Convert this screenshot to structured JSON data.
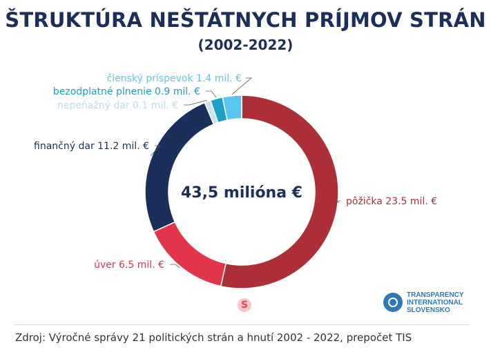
{
  "header": {
    "title": "ŠTRUKTÚRA NEŠTÁTNYCH PRÍJMOV STRÁN",
    "subtitle": "(2002-2022)"
  },
  "chart_data": {
    "type": "pie",
    "donut": true,
    "center_label": "43,5 milióna €",
    "slices": [
      {
        "label": "pôžička",
        "value": 23.5,
        "text": "pôžička 23.5 mil. €",
        "color": "#ad3038"
      },
      {
        "label": "úver",
        "value": 6.5,
        "text": "úver 6.5 mil. €",
        "color": "#e2354a"
      },
      {
        "label": "finančný dar",
        "value": 11.2,
        "text": "finančný dar 11.2 mil. €",
        "color": "#1b2f5b"
      },
      {
        "label": "nepeňažný dar",
        "value": 0.1,
        "text": "nepeňažný dar 0.1 mil. €",
        "color": "#c8e4f2"
      },
      {
        "label": "bezodplatné plnenie",
        "value": 0.9,
        "text": "bezodplatné plnenie 0.9 mil. €",
        "color": "#1e9fc7"
      },
      {
        "label": "členský príspevok",
        "value": 1.4,
        "text": "členský príspevok 1.4 mil. €",
        "color": "#5bc6ec"
      }
    ]
  },
  "footer": {
    "source": "Zdroj: Výročné správy 21 politických strán a hnutí 2002 - 2022, prepočet TIS"
  },
  "logos": {
    "ti_lines": [
      "TRANSPARENCY",
      "INTERNATIONAL",
      "SLOVENSKO"
    ],
    "s_mark": "S"
  }
}
